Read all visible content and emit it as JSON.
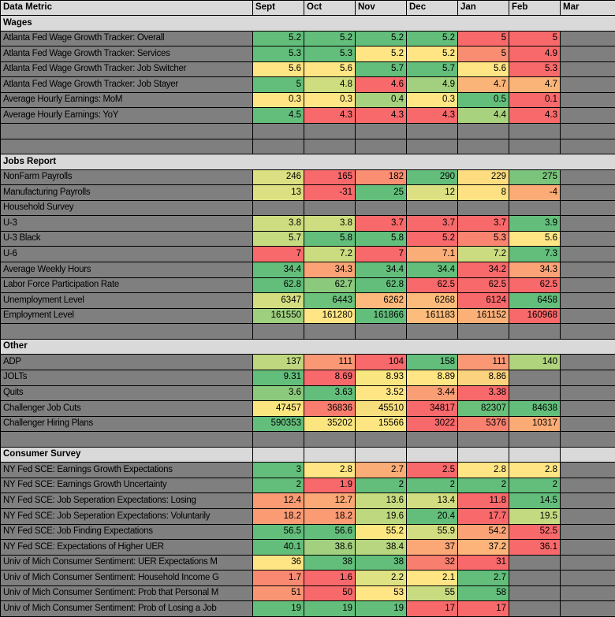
{
  "theme": {
    "grid_color": "#000000",
    "label_bg": "#7F7F7F",
    "section_bg": "#D9D9D9",
    "header_bg": "#D9D9D9",
    "green": "#63BE7B",
    "yellow": "#FFE584",
    "red": "#F8696B"
  },
  "header": {
    "title": "Data Metric",
    "months": [
      "Sept",
      "Oct",
      "Nov",
      "Dec",
      "Jan",
      "Feb",
      "Mar"
    ]
  },
  "rows": [
    {
      "t": "section",
      "label": "Wages"
    },
    {
      "t": "data",
      "label": "Atlanta Fed Wage Growth Tracker: Overall",
      "cells": [
        [
          "5.2",
          "#63BE7B"
        ],
        [
          "5.2",
          "#63BE7B"
        ],
        [
          "5.2",
          "#63BE7B"
        ],
        [
          "5.2",
          "#63BE7B"
        ],
        [
          "5",
          "#F8696B"
        ],
        [
          "5",
          "#F8696B"
        ]
      ]
    },
    {
      "t": "data",
      "label": "Atlanta Fed Wage Growth Tracker: Services",
      "cells": [
        [
          "5.3",
          "#63BE7B"
        ],
        [
          "5.3",
          "#63BE7B"
        ],
        [
          "5.2",
          "#FFE584"
        ],
        [
          "5.2",
          "#FFE584"
        ],
        [
          "5",
          "#F98D72"
        ],
        [
          "4.9",
          "#F8696B"
        ]
      ]
    },
    {
      "t": "data",
      "label": "Atlanta Fed Wage Growth Tracker: Job Switcher",
      "cells": [
        [
          "5.6",
          "#FFE584"
        ],
        [
          "5.6",
          "#FFE584"
        ],
        [
          "5.7",
          "#63BE7B"
        ],
        [
          "5.7",
          "#63BE7B"
        ],
        [
          "5.6",
          "#FFE584"
        ],
        [
          "5.3",
          "#F8696B"
        ]
      ]
    },
    {
      "t": "data",
      "label": "Atlanta Fed Wage Growth Tracker: Job Stayer",
      "cells": [
        [
          "5",
          "#63BE7B"
        ],
        [
          "4.8",
          "#CFDD81"
        ],
        [
          "4.6",
          "#F8696B"
        ],
        [
          "4.9",
          "#A2D07E"
        ],
        [
          "4.7",
          "#FBB478"
        ],
        [
          "4.7",
          "#FBB478"
        ]
      ]
    },
    {
      "t": "data",
      "label": "Average Hourly Earnings: MoM",
      "cells": [
        [
          "0.3",
          "#FFE584"
        ],
        [
          "0.3",
          "#FFE584"
        ],
        [
          "0.4",
          "#A6D17E"
        ],
        [
          "0.3",
          "#FFE584"
        ],
        [
          "0.5",
          "#63BE7B"
        ],
        [
          "0.1",
          "#F8696B"
        ]
      ]
    },
    {
      "t": "data",
      "label": "Average Hourly Earnings: YoY",
      "cells": [
        [
          "4.5",
          "#63BE7B"
        ],
        [
          "4.3",
          "#F8696B"
        ],
        [
          "4.3",
          "#F8696B"
        ],
        [
          "4.3",
          "#F8696B"
        ],
        [
          "4.4",
          "#A9D27E"
        ],
        [
          "4.3",
          "#F8696B"
        ]
      ]
    },
    {
      "t": "empty"
    },
    {
      "t": "empty"
    },
    {
      "t": "section",
      "label": "Jobs Report"
    },
    {
      "t": "data",
      "label": "NonFarm Payrolls",
      "cells": [
        [
          "246",
          "#DCE082"
        ],
        [
          "165",
          "#F8696B"
        ],
        [
          "182",
          "#FA8E72"
        ],
        [
          "290",
          "#63BE7B"
        ],
        [
          "229",
          "#FEDD80"
        ],
        [
          "275",
          "#7AC47C"
        ]
      ]
    },
    {
      "t": "data",
      "label": "Manufacturing Payrolls",
      "cells": [
        [
          "13",
          "#DCE082"
        ],
        [
          "-31",
          "#F8696B"
        ],
        [
          "25",
          "#63BE7B"
        ],
        [
          "12",
          "#DCE082"
        ],
        [
          "8",
          "#FEE182"
        ],
        [
          "-4",
          "#FBAB76"
        ]
      ]
    },
    {
      "t": "data",
      "label": "Household Survey",
      "cells": []
    },
    {
      "t": "data",
      "label": "U-3",
      "cells": [
        [
          "3.8",
          "#CFDD81"
        ],
        [
          "3.8",
          "#CFDD81"
        ],
        [
          "3.7",
          "#F8696B"
        ],
        [
          "3.7",
          "#F8696B"
        ],
        [
          "3.7",
          "#F8696B"
        ],
        [
          "3.9",
          "#63BE7B"
        ]
      ]
    },
    {
      "t": "data",
      "label": "U-3 Black",
      "cells": [
        [
          "5.7",
          "#C6DA80"
        ],
        [
          "5.8",
          "#63BE7B"
        ],
        [
          "5.8",
          "#63BE7B"
        ],
        [
          "5.2",
          "#F8696B"
        ],
        [
          "5.3",
          "#F98570"
        ],
        [
          "5.6",
          "#FFE584"
        ]
      ]
    },
    {
      "t": "data",
      "label": "U-6",
      "cells": [
        [
          "7",
          "#F8696B"
        ],
        [
          "7.2",
          "#CBDC80"
        ],
        [
          "7",
          "#F8696B"
        ],
        [
          "7.1",
          "#FBAD77"
        ],
        [
          "7.2",
          "#CBDC80"
        ],
        [
          "7.3",
          "#63BE7B"
        ]
      ]
    },
    {
      "t": "data",
      "label": "Average Weekly Hours",
      "cells": [
        [
          "34.4",
          "#63BE7B"
        ],
        [
          "34.3",
          "#FBA376"
        ],
        [
          "34.4",
          "#63BE7B"
        ],
        [
          "34.4",
          "#63BE7B"
        ],
        [
          "34.2",
          "#F8696B"
        ],
        [
          "34.3",
          "#FBA376"
        ]
      ]
    },
    {
      "t": "data",
      "label": "Labor Force Participation Rate",
      "cells": [
        [
          "62.8",
          "#63BE7B"
        ],
        [
          "62.7",
          "#8BC97D"
        ],
        [
          "62.8",
          "#63BE7B"
        ],
        [
          "62.5",
          "#F8696B"
        ],
        [
          "62.5",
          "#F8696B"
        ],
        [
          "62.5",
          "#F8696B"
        ]
      ]
    },
    {
      "t": "data",
      "label": "Unemployment Level",
      "cells": [
        [
          "6347",
          "#D4DE81"
        ],
        [
          "6443",
          "#6CC17B"
        ],
        [
          "6262",
          "#FCB97B"
        ],
        [
          "6268",
          "#FCBB7B"
        ],
        [
          "6124",
          "#F8696B"
        ],
        [
          "6458",
          "#63BE7B"
        ]
      ]
    },
    {
      "t": "data",
      "label": "Employment Level",
      "cells": [
        [
          "161550",
          "#9DCF7E"
        ],
        [
          "161280",
          "#FFE584"
        ],
        [
          "161866",
          "#63BE7B"
        ],
        [
          "161183",
          "#FCBC7B"
        ],
        [
          "161152",
          "#FBB078"
        ],
        [
          "160968",
          "#F8696B"
        ]
      ]
    },
    {
      "t": "empty"
    },
    {
      "t": "section",
      "label": "Other"
    },
    {
      "t": "data",
      "label": "ADP",
      "cells": [
        [
          "137",
          "#BFD87F"
        ],
        [
          "111",
          "#FA9876"
        ],
        [
          "104",
          "#F8696B"
        ],
        [
          "158",
          "#63BE7B"
        ],
        [
          "111",
          "#FA9876"
        ],
        [
          "140",
          "#AFD47D"
        ]
      ]
    },
    {
      "t": "data",
      "label": "JOLTs",
      "cells": [
        [
          "9.31",
          "#63BE7B"
        ],
        [
          "8.69",
          "#F8696B"
        ],
        [
          "8.93",
          "#F9E681"
        ],
        [
          "8.89",
          "#FFE584"
        ],
        [
          "8.86",
          "#FBD37E"
        ],
        null
      ]
    },
    {
      "t": "data",
      "label": "Quits",
      "cells": [
        [
          "3.6",
          "#8BC97D"
        ],
        [
          "3.63",
          "#63BE7B"
        ],
        [
          "3.52",
          "#FFE584"
        ],
        [
          "3.44",
          "#FA9E75"
        ],
        [
          "3.38",
          "#F8696B"
        ],
        null
      ]
    },
    {
      "t": "data",
      "label": "Challenger Job Cuts",
      "cells": [
        [
          "47457",
          "#FBE57F"
        ],
        [
          "36836",
          "#F87D6E"
        ],
        [
          "45510",
          "#F8DF7E"
        ],
        [
          "34817",
          "#F8696B"
        ],
        [
          "82307",
          "#68C07B"
        ],
        [
          "84638",
          "#63BE7B"
        ]
      ]
    },
    {
      "t": "data",
      "label": "Challenger Hiring Plans",
      "cells": [
        [
          "590353",
          "#63BE7B"
        ],
        [
          "35202",
          "#FBE57F"
        ],
        [
          "15566",
          "#FDE681"
        ],
        [
          "3022",
          "#F8696B"
        ],
        [
          "5376",
          "#F8806F"
        ],
        [
          "10317",
          "#FBAC76"
        ]
      ]
    },
    {
      "t": "empty"
    },
    {
      "t": "section2",
      "label": "Consumer Survey"
    },
    {
      "t": "data",
      "label": "NY Fed SCE: Earnings Growth Expectations",
      "cells": [
        [
          "3",
          "#63BE7B"
        ],
        [
          "2.8",
          "#FFE584"
        ],
        [
          "2.7",
          "#FBAD77"
        ],
        [
          "2.5",
          "#F8696B"
        ],
        [
          "2.8",
          "#FFE584"
        ],
        [
          "2.8",
          "#FFE584"
        ]
      ]
    },
    {
      "t": "data",
      "label": "NY Fed SCE: Earnings Growth Uncertainty",
      "cells": [
        [
          "2",
          "#63BE7B"
        ],
        [
          "1.9",
          "#F8696B"
        ],
        [
          "2",
          "#63BE7B"
        ],
        [
          "2",
          "#63BE7B"
        ],
        [
          "2",
          "#63BE7B"
        ],
        [
          "2",
          "#63BE7B"
        ]
      ]
    },
    {
      "t": "data",
      "label": "NY Fed SCE: Job Seperation Expectations: Losing",
      "cells": [
        [
          "12.4",
          "#FA9B74"
        ],
        [
          "12.7",
          "#FBA876"
        ],
        [
          "13.6",
          "#C6DA80"
        ],
        [
          "13.4",
          "#D2DD81"
        ],
        [
          "11.8",
          "#F8696B"
        ],
        [
          "14.5",
          "#63BE7B"
        ]
      ]
    },
    {
      "t": "data",
      "label": "NY Fed SCE: Job Seperation Expectations: Voluntarily",
      "cells": [
        [
          "18.2",
          "#FA9B74"
        ],
        [
          "18.2",
          "#FA9B74"
        ],
        [
          "19.6",
          "#BED87F"
        ],
        [
          "20.4",
          "#63BE7B"
        ],
        [
          "17.7",
          "#F8696B"
        ],
        [
          "19.5",
          "#C4DA80"
        ]
      ]
    },
    {
      "t": "data",
      "label": "NY Fed SCE: Job Finding Expectations",
      "cells": [
        [
          "56.5",
          "#63BE7B"
        ],
        [
          "56.6",
          "#63BE7B"
        ],
        [
          "55.2",
          "#FCE780"
        ],
        [
          "55.9",
          "#D2DD81"
        ],
        [
          "54.2",
          "#FBA376"
        ],
        [
          "52.5",
          "#F8696B"
        ]
      ]
    },
    {
      "t": "data",
      "label": "NY Fed SCE: Expectations of Higher UER",
      "cells": [
        [
          "40.1",
          "#63BE7B"
        ],
        [
          "38.6",
          "#A2D07E"
        ],
        [
          "38.4",
          "#B7D67F"
        ],
        [
          "37",
          "#FBA776"
        ],
        [
          "37.2",
          "#FCB47A"
        ],
        [
          "36.1",
          "#F8696B"
        ]
      ]
    },
    {
      "t": "data",
      "label": "Univ of Mich Consumer Sentiment: UER Expectations M",
      "cells": [
        [
          "36",
          "#FFE584"
        ],
        [
          "38",
          "#63BE7B"
        ],
        [
          "38",
          "#63BE7B"
        ],
        [
          "32",
          "#F87E6F"
        ],
        [
          "31",
          "#F8696B"
        ],
        null
      ]
    },
    {
      "t": "data",
      "label": "Univ of Mich Consumer Sentiment: Household Income G",
      "cells": [
        [
          "1.7",
          "#FA8972"
        ],
        [
          "1.6",
          "#F8696B"
        ],
        [
          "2.2",
          "#DFE283"
        ],
        [
          "2.1",
          "#FFE584"
        ],
        [
          "2.7",
          "#63BE7B"
        ],
        null
      ]
    },
    {
      "t": "data",
      "label": "Univ of Mich Consumer Sentiment: Prob that Personal M",
      "cells": [
        [
          "51",
          "#FA9574"
        ],
        [
          "50",
          "#F8696B"
        ],
        [
          "53",
          "#FFE584"
        ],
        [
          "55",
          "#C9DB80"
        ],
        [
          "58",
          "#63BE7B"
        ],
        null
      ]
    },
    {
      "t": "data",
      "label": "Univ of Mich Consumer Sentiment: Prob of Losing a Job",
      "cells": [
        [
          "19",
          "#63BE7B"
        ],
        [
          "19",
          "#63BE7B"
        ],
        [
          "19",
          "#63BE7B"
        ],
        [
          "17",
          "#F8696B"
        ],
        [
          "17",
          "#F8696B"
        ],
        null
      ]
    }
  ]
}
